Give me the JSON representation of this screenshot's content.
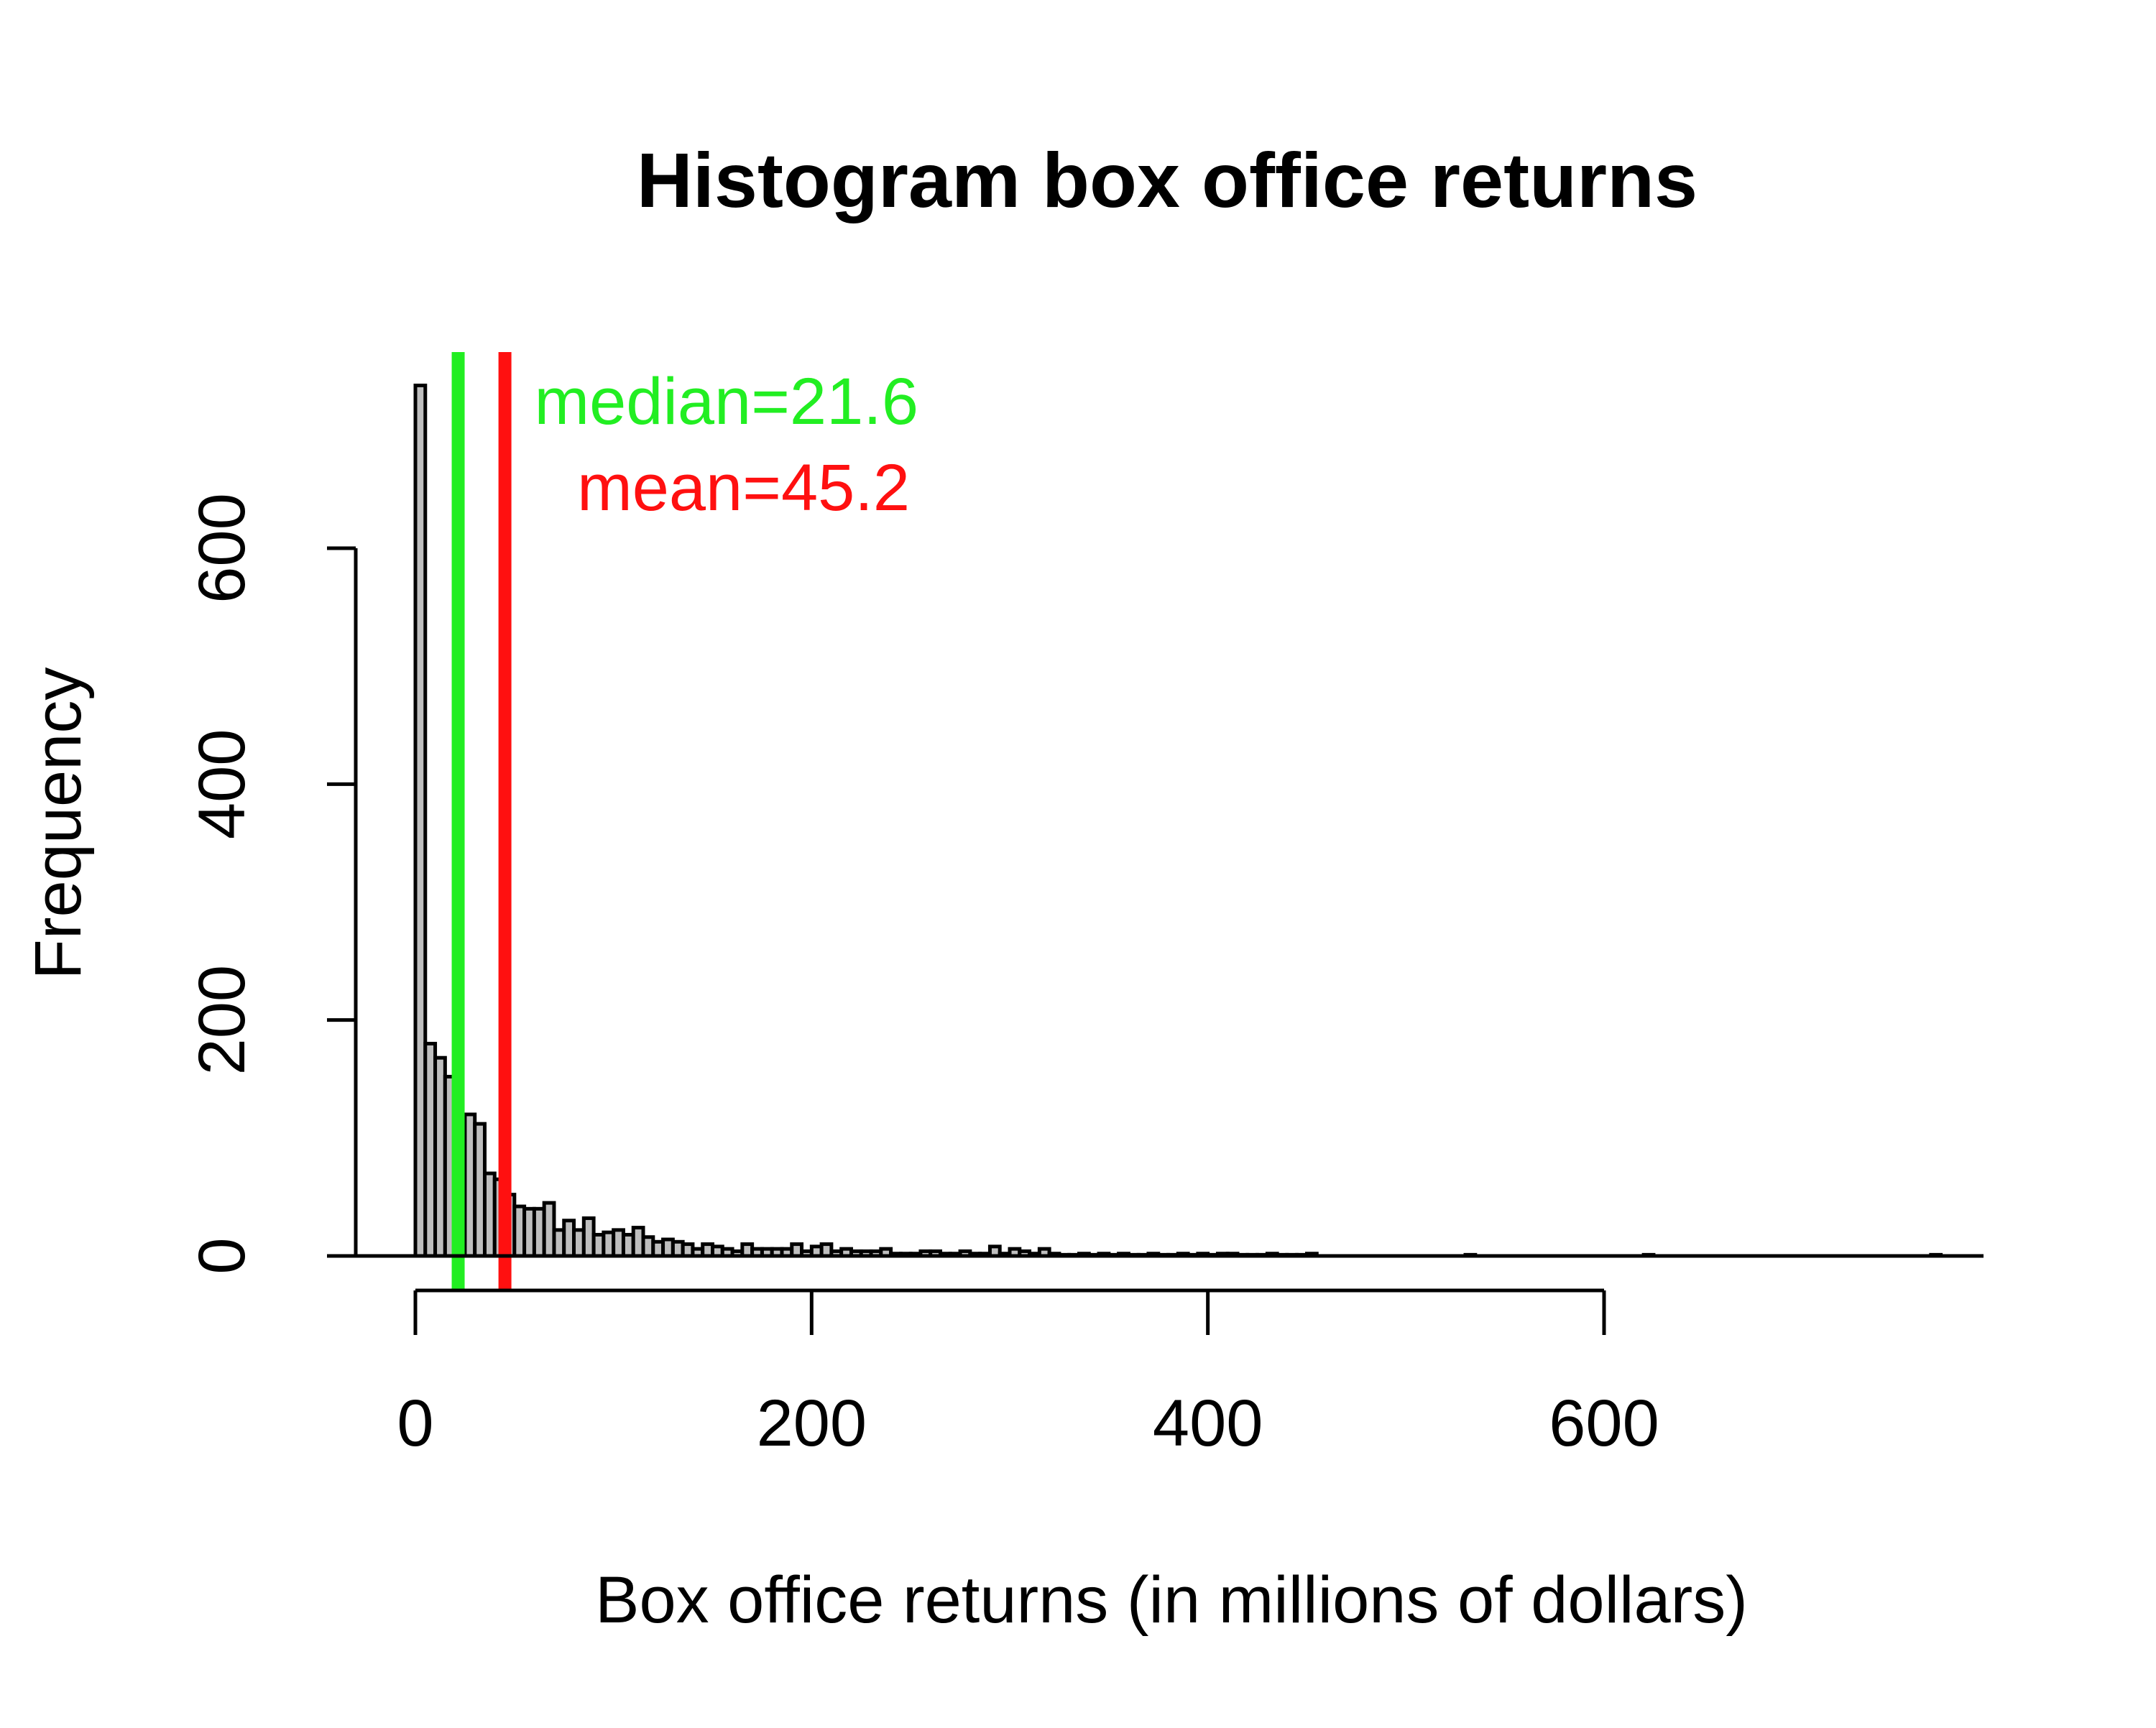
{
  "chart_data": {
    "type": "bar",
    "title": "Histogram box office returns",
    "xlabel": "Box office returns (in millions of dollars)",
    "ylabel": "Frequency",
    "xlim": [
      0,
      800
    ],
    "ylim": [
      0,
      740
    ],
    "x_ticks": [
      0,
      200,
      400,
      600
    ],
    "y_ticks": [
      0,
      200,
      400,
      600
    ],
    "bin_width": 5,
    "bin_start": 0,
    "values": [
      738,
      180,
      168,
      152,
      106,
      120,
      112,
      70,
      65,
      52,
      42,
      40,
      40,
      45,
      22,
      30,
      22,
      32,
      18,
      20,
      22,
      18,
      24,
      16,
      12,
      14,
      12,
      10,
      6,
      10,
      8,
      6,
      4,
      10,
      6,
      6,
      6,
      6,
      10,
      4,
      8,
      10,
      4,
      6,
      4,
      4,
      4,
      6,
      2,
      2,
      2,
      4,
      4,
      2,
      2,
      4,
      2,
      2,
      8,
      2,
      6,
      4,
      2,
      6,
      2,
      1,
      1,
      2,
      1,
      2,
      1,
      2,
      1,
      1,
      2,
      1,
      1,
      2,
      1,
      2,
      1,
      2,
      2,
      1,
      1,
      1,
      2,
      1,
      1,
      1,
      2,
      0,
      0,
      0,
      0,
      0,
      0,
      0,
      0,
      0,
      0,
      0,
      0,
      0,
      0,
      0,
      1,
      0,
      0,
      0,
      0,
      0,
      0,
      0,
      0,
      0,
      0,
      0,
      0,
      0,
      0,
      0,
      0,
      0,
      1,
      0,
      0,
      0,
      0,
      0,
      0,
      0,
      0,
      0,
      0,
      0,
      0,
      0,
      0,
      0,
      0,
      0,
      0,
      0,
      0,
      0,
      0,
      0,
      0,
      0,
      0,
      0,
      0,
      1
    ],
    "reference_lines": [
      {
        "label": "median=21.6",
        "x": 21.6,
        "color": "#22ee22"
      },
      {
        "label": "mean=45.2",
        "x": 45.2,
        "color": "#ff1010"
      }
    ],
    "bar_fill": "#bebebe",
    "bar_stroke": "#000000",
    "grid": false,
    "legend": "none"
  }
}
